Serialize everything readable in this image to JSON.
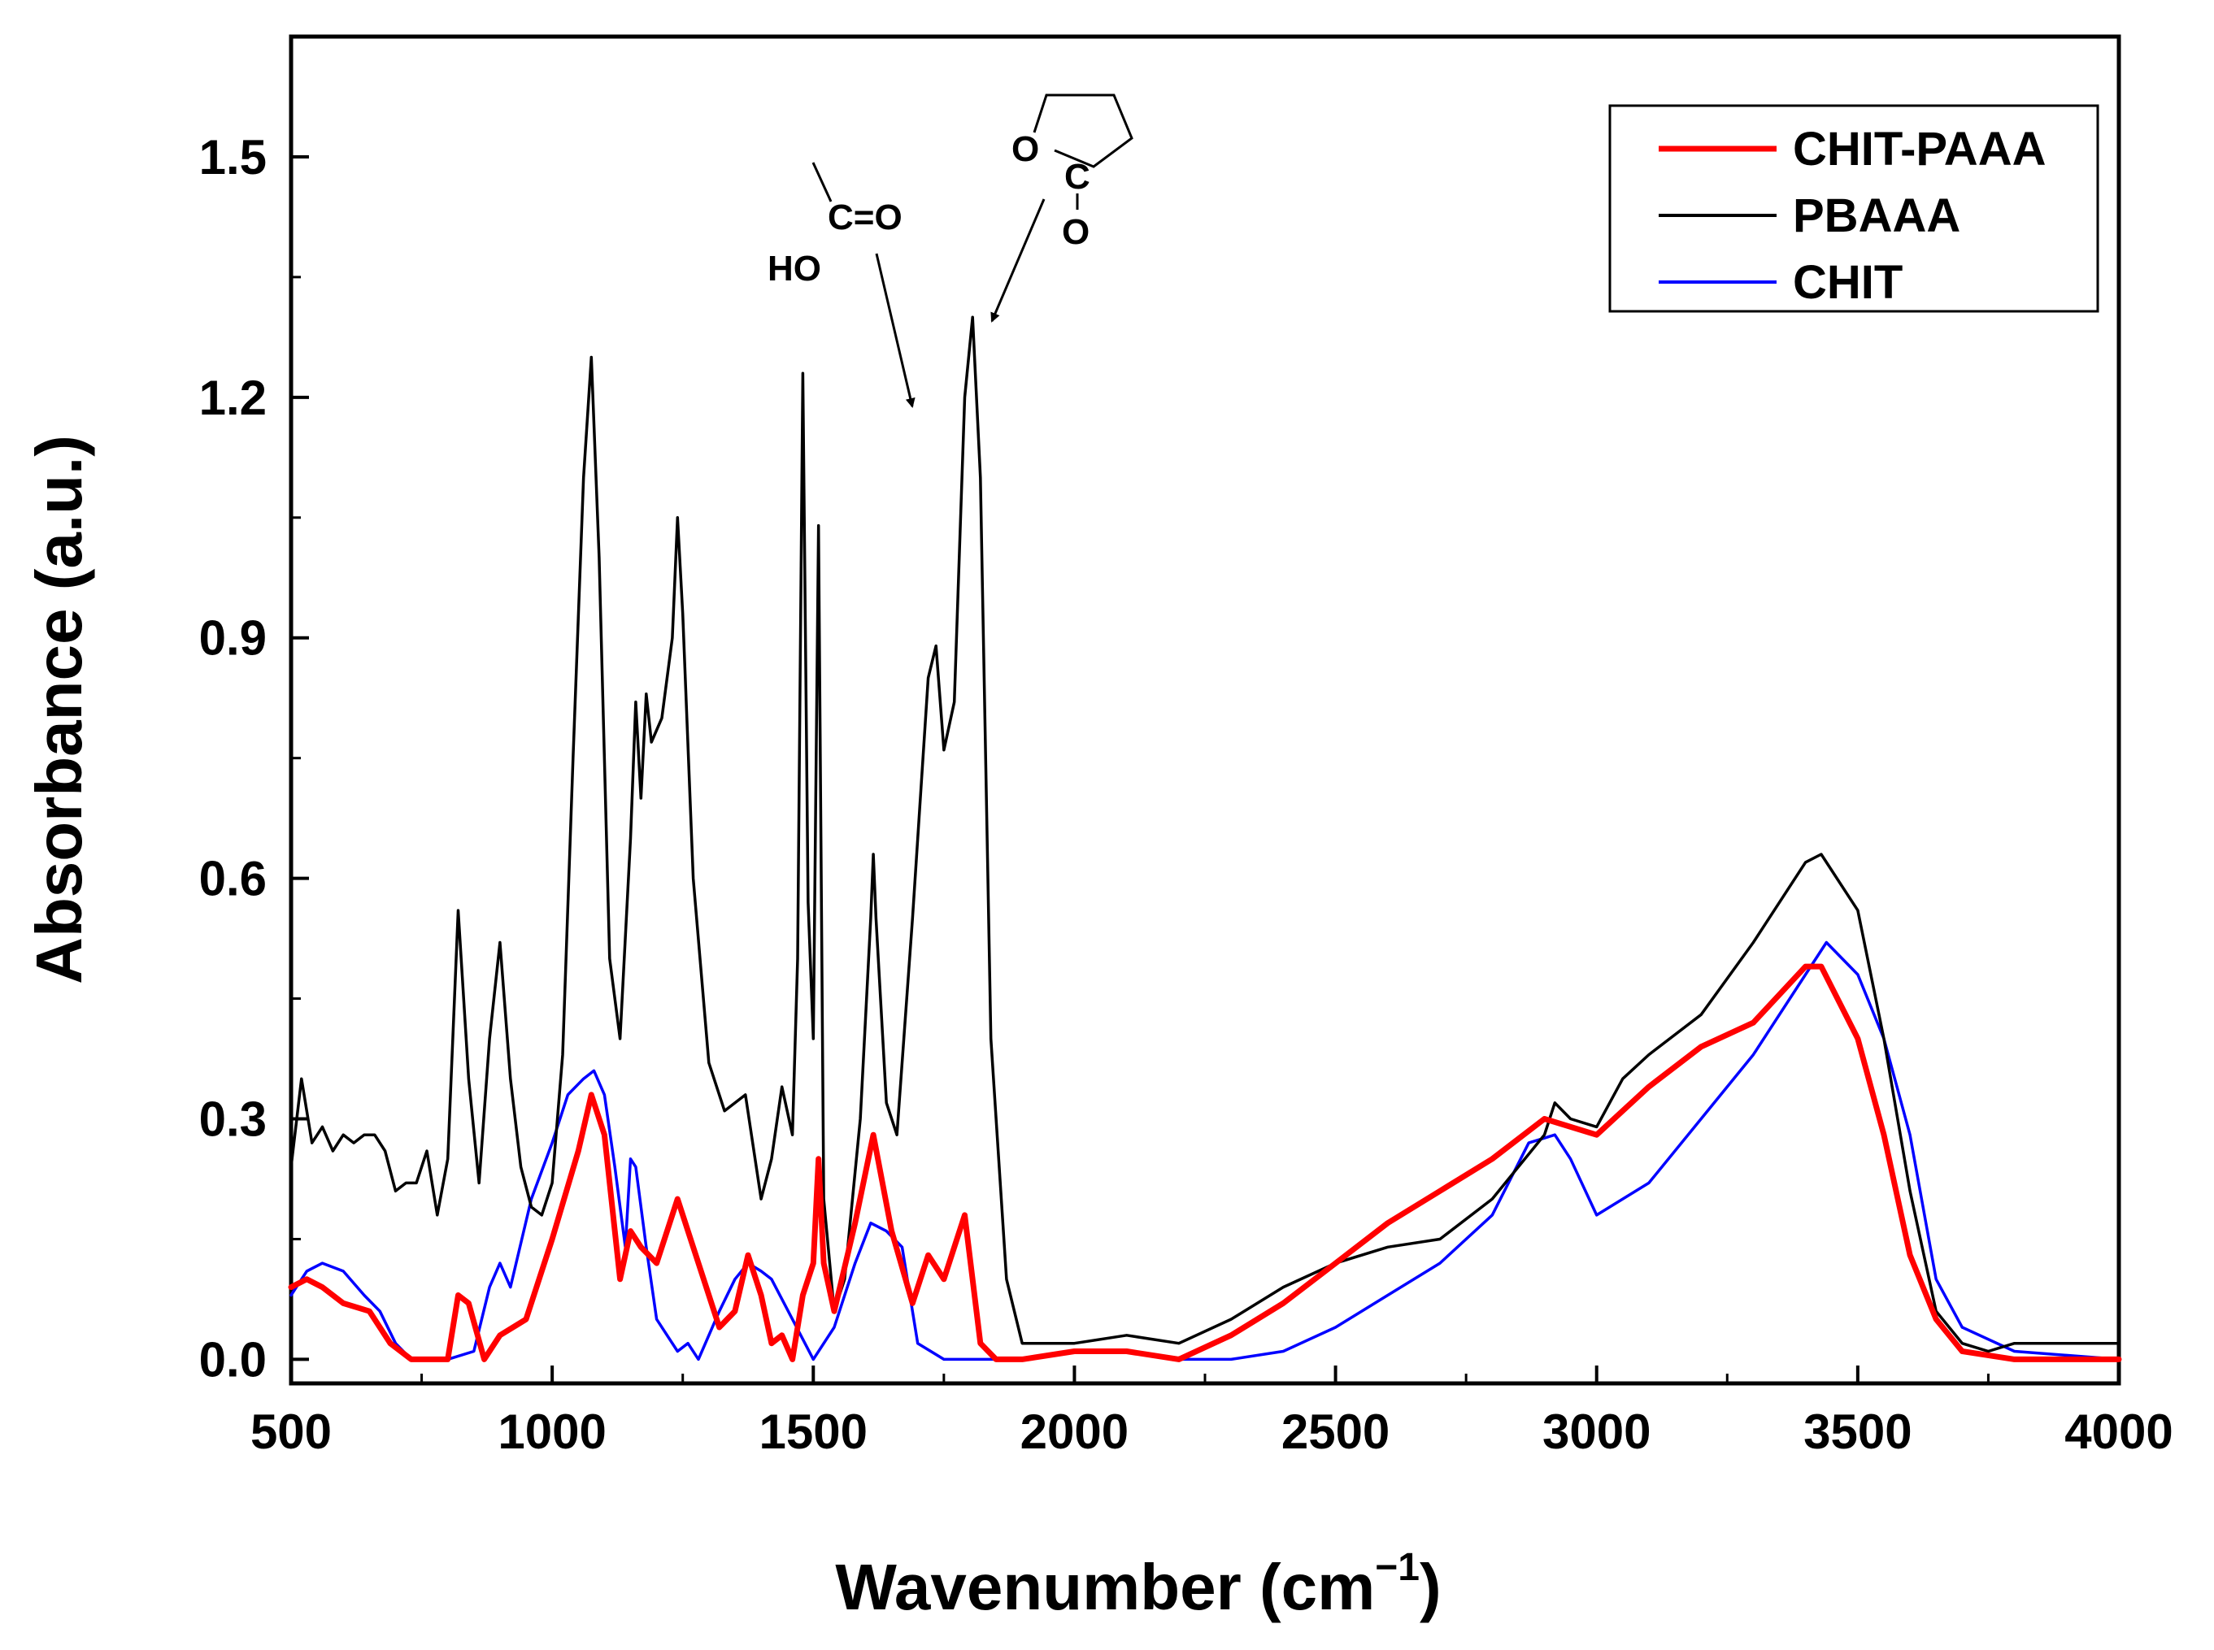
{
  "chart_data": {
    "type": "line",
    "title": "",
    "xlabel": "Wavenumber (cm",
    "xlabel_sup": "−1",
    "xlabel_close": ")",
    "ylabel": "Absorbance (a.u.)",
    "xlim": [
      500,
      4000
    ],
    "ylim": [
      -0.03,
      1.65
    ],
    "xticks": [
      500,
      1000,
      1500,
      2000,
      2500,
      3000,
      3500,
      4000
    ],
    "xtick_labels": [
      "500",
      "1000",
      "1500",
      "2000",
      "2500",
      "3000",
      "3500",
      "4000"
    ],
    "yticks": [
      0.0,
      0.3,
      0.6,
      0.9,
      1.2,
      1.5
    ],
    "ytick_labels": [
      "0.0",
      "0.3",
      "0.6",
      "0.9",
      "1.2",
      "1.5"
    ],
    "grid": false,
    "legend_position": "top-right",
    "series": [
      {
        "name": "CHIT-PAAA",
        "color": "#ff0000",
        "x": [
          500,
          530,
          560,
          600,
          650,
          690,
          730,
          800,
          820,
          840,
          870,
          900,
          950,
          1000,
          1050,
          1075,
          1100,
          1130,
          1150,
          1170,
          1200,
          1240,
          1280,
          1320,
          1350,
          1375,
          1400,
          1420,
          1440,
          1460,
          1480,
          1500,
          1510,
          1520,
          1540,
          1580,
          1615,
          1650,
          1690,
          1720,
          1750,
          1790,
          1820,
          1850,
          1900,
          2000,
          2100,
          2200,
          2300,
          2400,
          2500,
          2600,
          2700,
          2800,
          2900,
          3000,
          3100,
          3200,
          3300,
          3400,
          3430,
          3500,
          3550,
          3600,
          3650,
          3700,
          3800,
          4000
        ],
        "y": [
          0.09,
          0.1,
          0.09,
          0.07,
          0.06,
          0.02,
          0.0,
          0.0,
          0.08,
          0.07,
          0.0,
          0.03,
          0.05,
          0.15,
          0.26,
          0.33,
          0.28,
          0.1,
          0.16,
          0.14,
          0.12,
          0.2,
          0.12,
          0.04,
          0.06,
          0.13,
          0.08,
          0.02,
          0.03,
          0.0,
          0.08,
          0.12,
          0.25,
          0.12,
          0.06,
          0.17,
          0.28,
          0.16,
          0.07,
          0.13,
          0.1,
          0.18,
          0.02,
          0.0,
          0.0,
          0.01,
          0.01,
          0.0,
          0.03,
          0.07,
          0.12,
          0.17,
          0.21,
          0.25,
          0.3,
          0.28,
          0.34,
          0.39,
          0.42,
          0.49,
          0.49,
          0.4,
          0.28,
          0.13,
          0.05,
          0.01,
          0.0,
          0.0
        ]
      },
      {
        "name": "PBAAA",
        "color": "#000000",
        "x": [
          500,
          520,
          540,
          560,
          580,
          600,
          620,
          640,
          660,
          680,
          700,
          720,
          740,
          760,
          780,
          800,
          820,
          840,
          860,
          880,
          900,
          920,
          940,
          960,
          980,
          1000,
          1020,
          1040,
          1060,
          1075,
          1090,
          1110,
          1130,
          1150,
          1160,
          1170,
          1180,
          1190,
          1210,
          1230,
          1240,
          1250,
          1270,
          1300,
          1330,
          1370,
          1400,
          1420,
          1440,
          1460,
          1470,
          1480,
          1490,
          1500,
          1510,
          1520,
          1540,
          1560,
          1590,
          1610,
          1615,
          1620,
          1640,
          1660,
          1690,
          1720,
          1735,
          1750,
          1770,
          1790,
          1805,
          1820,
          1840,
          1870,
          1900,
          2000,
          2100,
          2200,
          2300,
          2400,
          2500,
          2600,
          2700,
          2800,
          2900,
          2920,
          2950,
          3000,
          3050,
          3100,
          3200,
          3300,
          3400,
          3430,
          3500,
          3550,
          3600,
          3650,
          3700,
          3750,
          3800,
          4000
        ],
        "y": [
          0.24,
          0.35,
          0.27,
          0.29,
          0.26,
          0.28,
          0.27,
          0.28,
          0.28,
          0.26,
          0.21,
          0.22,
          0.22,
          0.26,
          0.18,
          0.25,
          0.56,
          0.35,
          0.22,
          0.4,
          0.52,
          0.35,
          0.24,
          0.19,
          0.18,
          0.22,
          0.38,
          0.75,
          1.1,
          1.25,
          1.0,
          0.5,
          0.4,
          0.65,
          0.82,
          0.7,
          0.83,
          0.77,
          0.8,
          0.9,
          1.05,
          0.93,
          0.6,
          0.37,
          0.31,
          0.33,
          0.2,
          0.25,
          0.34,
          0.28,
          0.5,
          1.23,
          0.57,
          0.4,
          1.04,
          0.2,
          0.06,
          0.1,
          0.3,
          0.55,
          0.63,
          0.55,
          0.32,
          0.28,
          0.55,
          0.85,
          0.89,
          0.76,
          0.82,
          1.2,
          1.3,
          1.1,
          0.4,
          0.1,
          0.02,
          0.02,
          0.03,
          0.02,
          0.05,
          0.09,
          0.12,
          0.14,
          0.15,
          0.2,
          0.28,
          0.32,
          0.3,
          0.29,
          0.35,
          0.38,
          0.43,
          0.52,
          0.62,
          0.63,
          0.56,
          0.4,
          0.21,
          0.06,
          0.02,
          0.01,
          0.02,
          0.02
        ]
      },
      {
        "name": "CHIT",
        "color": "#0000ff",
        "x": [
          500,
          530,
          560,
          600,
          640,
          670,
          700,
          730,
          800,
          850,
          880,
          900,
          920,
          960,
          1000,
          1030,
          1060,
          1080,
          1100,
          1120,
          1140,
          1150,
          1160,
          1180,
          1200,
          1240,
          1260,
          1280,
          1320,
          1350,
          1375,
          1400,
          1420,
          1460,
          1500,
          1540,
          1580,
          1610,
          1640,
          1670,
          1700,
          1750,
          1800,
          1900,
          2000,
          2100,
          2200,
          2300,
          2400,
          2500,
          2600,
          2700,
          2800,
          2870,
          2920,
          2950,
          3000,
          3100,
          3200,
          3300,
          3400,
          3440,
          3500,
          3550,
          3600,
          3650,
          3700,
          3800,
          4000
        ],
        "y": [
          0.08,
          0.11,
          0.12,
          0.11,
          0.08,
          0.06,
          0.02,
          0.0,
          0.0,
          0.01,
          0.09,
          0.12,
          0.09,
          0.2,
          0.27,
          0.33,
          0.35,
          0.36,
          0.33,
          0.24,
          0.14,
          0.25,
          0.24,
          0.14,
          0.05,
          0.01,
          0.02,
          0.0,
          0.06,
          0.1,
          0.12,
          0.11,
          0.1,
          0.05,
          0.0,
          0.04,
          0.12,
          0.17,
          0.16,
          0.14,
          0.02,
          0.0,
          0.0,
          0.0,
          0.01,
          0.01,
          0.0,
          0.0,
          0.01,
          0.04,
          0.08,
          0.12,
          0.18,
          0.27,
          0.28,
          0.25,
          0.18,
          0.22,
          0.3,
          0.38,
          0.48,
          0.52,
          0.48,
          0.4,
          0.28,
          0.1,
          0.04,
          0.01,
          0.0
        ]
      }
    ],
    "annotations": [
      {
        "kind": "carboxylic-acid",
        "labels": [
          "C=O",
          "HO"
        ],
        "arrow_to": [
          1700,
          1.2
        ]
      },
      {
        "kind": "lactone-ring",
        "labels": [
          "O",
          "C",
          "O"
        ],
        "arrow_to": [
          1820,
          1.3
        ]
      }
    ]
  }
}
